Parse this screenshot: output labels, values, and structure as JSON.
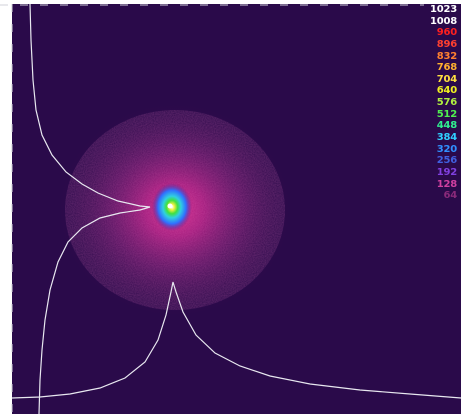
{
  "viewer": {
    "background_color": "#2a0a4a",
    "profile_color": "#e8e8f0",
    "frame_color": "#d0d0d8"
  },
  "beam": {
    "halo_color": "#c8208c",
    "core_colors": [
      "#5a1a8a",
      "#3070ff",
      "#30d0e0",
      "#40e040",
      "#f0f040",
      "#ffffff"
    ]
  },
  "legend": {
    "levels": [
      {
        "label": "1023",
        "color": "#ffffff"
      },
      {
        "label": "1008",
        "color": "#ffffff"
      },
      {
        "label": "960",
        "color": "#ff2020"
      },
      {
        "label": "896",
        "color": "#ff4030"
      },
      {
        "label": "832",
        "color": "#ff8030"
      },
      {
        "label": "768",
        "color": "#ffb030"
      },
      {
        "label": "704",
        "color": "#ffe040"
      },
      {
        "label": "640",
        "color": "#f0f020"
      },
      {
        "label": "576",
        "color": "#b0f040"
      },
      {
        "label": "512",
        "color": "#50f050"
      },
      {
        "label": "448",
        "color": "#30f090"
      },
      {
        "label": "384",
        "color": "#30d0ff"
      },
      {
        "label": "320",
        "color": "#3090ff"
      },
      {
        "label": "256",
        "color": "#4060e0"
      },
      {
        "label": "192",
        "color": "#8040e0"
      },
      {
        "label": "128",
        "color": "#d040a0"
      },
      {
        "label": "64",
        "color": "#8a2a7a"
      }
    ]
  }
}
